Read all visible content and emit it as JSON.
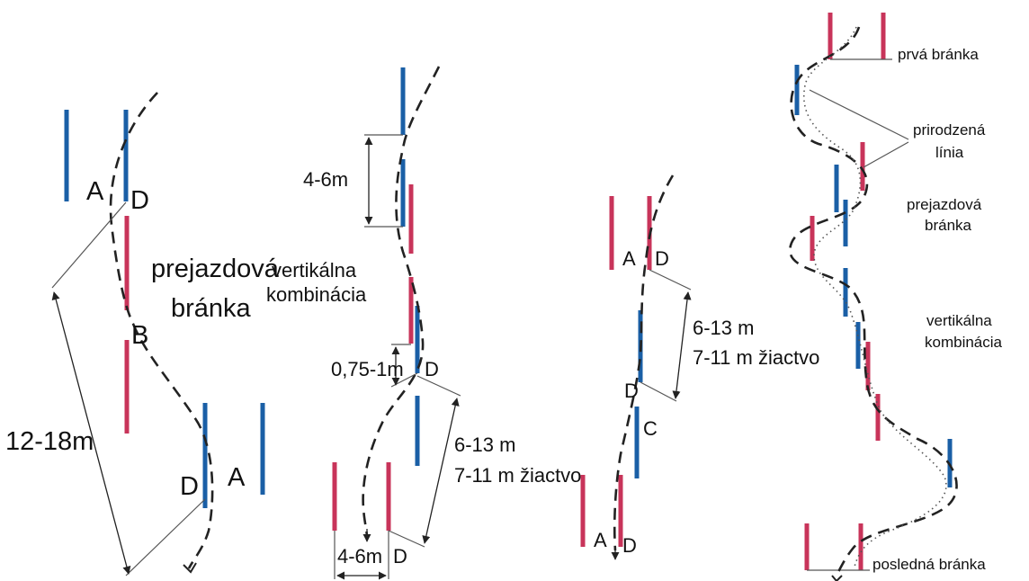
{
  "labels": {
    "p1_a_top": "A",
    "p1_d_top": "D",
    "p1_b": "B",
    "p1_d_bottom": "D",
    "p1_a_bottom": "A",
    "p1_dist": "12-18m",
    "p1_hairpin_1": "prejazdová",
    "p1_hairpin_2": "bránka",
    "p2_vertical_1": "vertikálna",
    "p2_vertical_2": "kombinácia",
    "p2_dist_top": "4-6m",
    "p2_dist_small": "0,75-1m",
    "p2_d_mid": "D",
    "p2_dist_long_1": "6-13 m",
    "p2_dist_long_2": "7-11 m žiactvo",
    "p2_dist_bottom": "4-6m",
    "p2_d_bottom": "D",
    "p3_a_top": "A",
    "p3_d_top": "D",
    "p3_dist_1": "6-13 m",
    "p3_dist_2": "7-11 m žiactvo",
    "p3_d_mid": "D",
    "p3_c": "C",
    "p3_a_bottom": "A",
    "p3_d_bottom": "D",
    "p4_first_gate": "prvá bránka",
    "p4_natural_1": "prirodzená",
    "p4_natural_2": "línia",
    "p4_hairpin_1": "prejazdová",
    "p4_hairpin_2": "bránka",
    "p4_vertical_1": "vertikálna",
    "p4_vertical_2": "kombinácia",
    "p4_last_gate": "posledná bránka"
  },
  "colors": {
    "gate_blue": "#1a5fa6",
    "gate_red": "#c8345a"
  },
  "icons": [
    "arrowhead-icon"
  ]
}
